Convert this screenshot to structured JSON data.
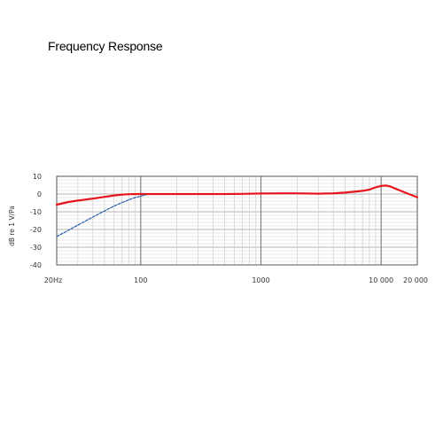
{
  "page": {
    "title": "Frequency Response"
  },
  "chart_data": {
    "type": "line",
    "title": "Frequency Response",
    "xlabel": "",
    "ylabel": "dB re 1 V/Pa",
    "xscale": "log",
    "xlim": [
      20,
      20000
    ],
    "ylim": [
      -40,
      10
    ],
    "yticks": [
      10,
      0,
      -10,
      -20,
      -30,
      -40
    ],
    "ytick_labels": [
      "10",
      "0",
      "-10",
      "-20",
      "-30",
      "-40"
    ],
    "xticks": [
      20,
      100,
      1000,
      10000,
      20000
    ],
    "xtick_labels": [
      "20Hz",
      "100",
      "1000",
      "10 000",
      "20 000"
    ],
    "grid": true,
    "legend": "none",
    "series": [
      {
        "style": "solid",
        "color": "#e8141c",
        "x": [
          20,
          25,
          30,
          40,
          50,
          60,
          70,
          80,
          100,
          150,
          200,
          300,
          400,
          500,
          700,
          1000,
          1500,
          2000,
          3000,
          4000,
          5000,
          6000,
          7000,
          8000,
          9000,
          10000,
          11000,
          12000,
          13000,
          15000,
          17000,
          20000
        ],
        "y": [
          -6,
          -4.5,
          -3.7,
          -2.6,
          -1.6,
          -0.8,
          -0.3,
          -0.1,
          0,
          0,
          0,
          0,
          0,
          0,
          0.1,
          0.3,
          0.4,
          0.4,
          0.2,
          0.4,
          0.8,
          1.3,
          1.8,
          2.5,
          3.8,
          4.6,
          4.8,
          4.2,
          3.2,
          1.5,
          0,
          -1.8
        ]
      },
      {
        "style": "dashed",
        "color": "#2a5db0",
        "x": [
          20,
          25,
          30,
          40,
          50,
          60,
          70,
          80,
          90,
          100,
          110
        ],
        "y": [
          -24,
          -20.5,
          -17.5,
          -13,
          -9.5,
          -6.8,
          -4.8,
          -3.2,
          -2,
          -1.2,
          -0.5
        ]
      }
    ]
  }
}
